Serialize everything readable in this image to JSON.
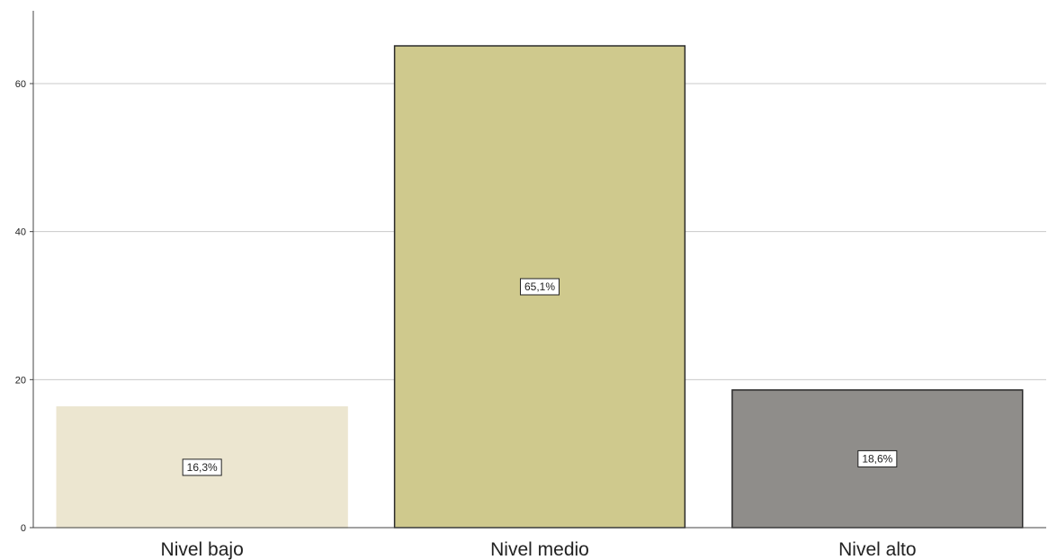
{
  "chart_data": {
    "type": "bar",
    "categories": [
      "Nivel bajo",
      "Nivel medio",
      "Nivel alto"
    ],
    "values": [
      16.3,
      65.1,
      18.6
    ],
    "data_labels": [
      "16,3%",
      "65,1%",
      "18,6%"
    ],
    "colors": [
      "#ece6d0",
      "#cfc98d",
      "#8f8d8a"
    ],
    "yticks": [
      0,
      20,
      40,
      60
    ],
    "ytick_labels": [
      "0",
      "20",
      "40",
      "60"
    ],
    "ylim": [
      0,
      70
    ],
    "grid": true,
    "title": "",
    "xlabel": "",
    "ylabel": ""
  }
}
